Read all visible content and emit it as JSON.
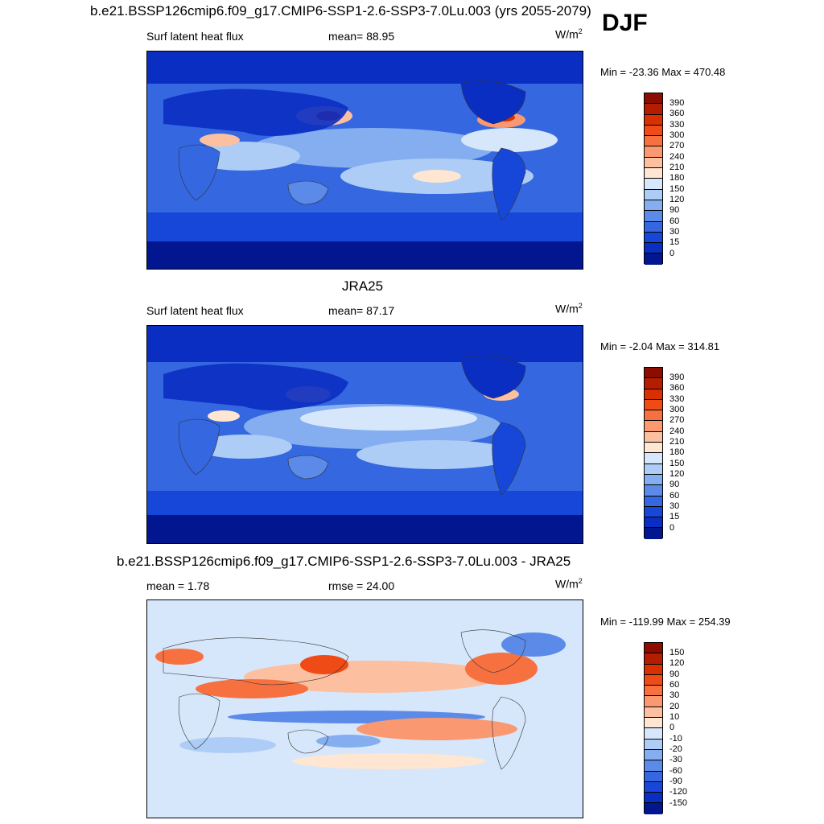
{
  "header": {
    "title": "b.e21.BSSP126cmip6.f09_g17.CMIP6-SSP1-2.6-SSP3-7.0Lu.003 (yrs 2055-2079)",
    "season": "DJF"
  },
  "panels": [
    {
      "title": "b.e21.BSSP126cmip6.f09_g17.CMIP6-SSP1-2.6-SSP3-7.0Lu.003 (yrs 2055-2079)",
      "left_label": "Surf latent heat flux",
      "center_label": "mean=  88.95",
      "units": "W/m",
      "units_exp": "2",
      "minmax": "Min = -23.36 Max = 470.48",
      "levels": [
        "390",
        "360",
        "330",
        "300",
        "270",
        "240",
        "210",
        "180",
        "150",
        "120",
        "90",
        "60",
        "30",
        "15",
        "0"
      ],
      "colors": [
        "#8c0d00",
        "#b51d00",
        "#d83000",
        "#ef4b16",
        "#f7703f",
        "#fa9971",
        "#fcbfa0",
        "#fee6d2",
        "#d6e7fb",
        "#aecdf6",
        "#84aef0",
        "#5b8ae9",
        "#3467e0",
        "#1747d8",
        "#0a2ec2",
        "#02168f"
      ]
    },
    {
      "title": "JRA25",
      "left_label": "Surf latent heat flux",
      "center_label": "mean=  87.17",
      "units": "W/m",
      "units_exp": "2",
      "minmax": "Min =  -2.04 Max = 314.81",
      "levels": [
        "390",
        "360",
        "330",
        "300",
        "270",
        "240",
        "210",
        "180",
        "150",
        "120",
        "90",
        "60",
        "30",
        "15",
        "0"
      ],
      "colors": [
        "#8c0d00",
        "#b51d00",
        "#d83000",
        "#ef4b16",
        "#f7703f",
        "#fa9971",
        "#fcbfa0",
        "#fee6d2",
        "#d6e7fb",
        "#aecdf6",
        "#84aef0",
        "#5b8ae9",
        "#3467e0",
        "#1747d8",
        "#0a2ec2",
        "#02168f"
      ]
    },
    {
      "title": "b.e21.BSSP126cmip6.f09_g17.CMIP6-SSP1-2.6-SSP3-7.0Lu.003 - JRA25",
      "left_label": "mean =   1.78",
      "center_label": "rmse =  24.00",
      "units": "W/m",
      "units_exp": "2",
      "minmax": "Min = -119.99 Max = 254.39",
      "levels": [
        "150",
        "120",
        "90",
        "60",
        "30",
        "20",
        "10",
        "0",
        "-10",
        "-20",
        "-30",
        "-60",
        "-90",
        "-120",
        "-150"
      ],
      "colors": [
        "#8c0d00",
        "#b51d00",
        "#d83000",
        "#ef4b16",
        "#f7703f",
        "#fa9971",
        "#fcbfa0",
        "#fee6d2",
        "#d6e7fb",
        "#aecdf6",
        "#84aef0",
        "#5b8ae9",
        "#3467e0",
        "#1747d8",
        "#0a2ec2",
        "#02168f"
      ]
    }
  ]
}
